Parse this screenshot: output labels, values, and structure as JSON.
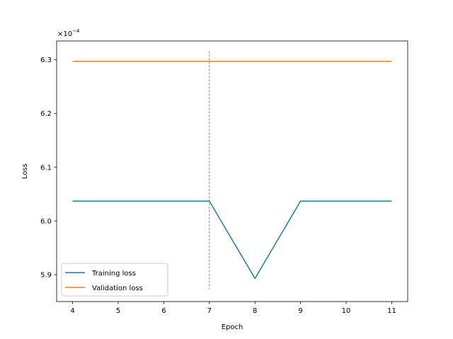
{
  "chart_data": {
    "type": "line",
    "title": "",
    "xlabel": "Epoch",
    "ylabel": "Loss",
    "offset_text": {
      "base": "×10",
      "exponent": "−4"
    },
    "x": [
      4,
      5,
      6,
      7,
      8,
      9,
      10,
      11
    ],
    "xlim": [
      3.65,
      11.35
    ],
    "ylim": [
      5.85,
      6.335
    ],
    "xticks": [
      4,
      5,
      6,
      7,
      8,
      9,
      10,
      11
    ],
    "yticks": [
      5.9,
      6.0,
      6.1,
      6.2,
      6.3
    ],
    "ytick_labels": [
      "5.9",
      "6.0",
      "6.1",
      "6.2",
      "6.3"
    ],
    "grid": false,
    "legend_position": "lower-left",
    "series": [
      {
        "name": "Training loss",
        "color": "#1f77b4",
        "values": [
          6.037,
          6.037,
          6.037,
          6.037,
          5.893,
          6.037,
          6.037,
          6.037
        ]
      },
      {
        "name": "Validation loss",
        "color": "#ff7f0e",
        "values": [
          6.297,
          6.297,
          6.297,
          6.297,
          6.297,
          6.297,
          6.297,
          6.297
        ]
      }
    ],
    "vline": {
      "x": 7,
      "y_range": [
        5.873,
        6.316
      ],
      "color": "#808080",
      "style": "dashed"
    }
  }
}
